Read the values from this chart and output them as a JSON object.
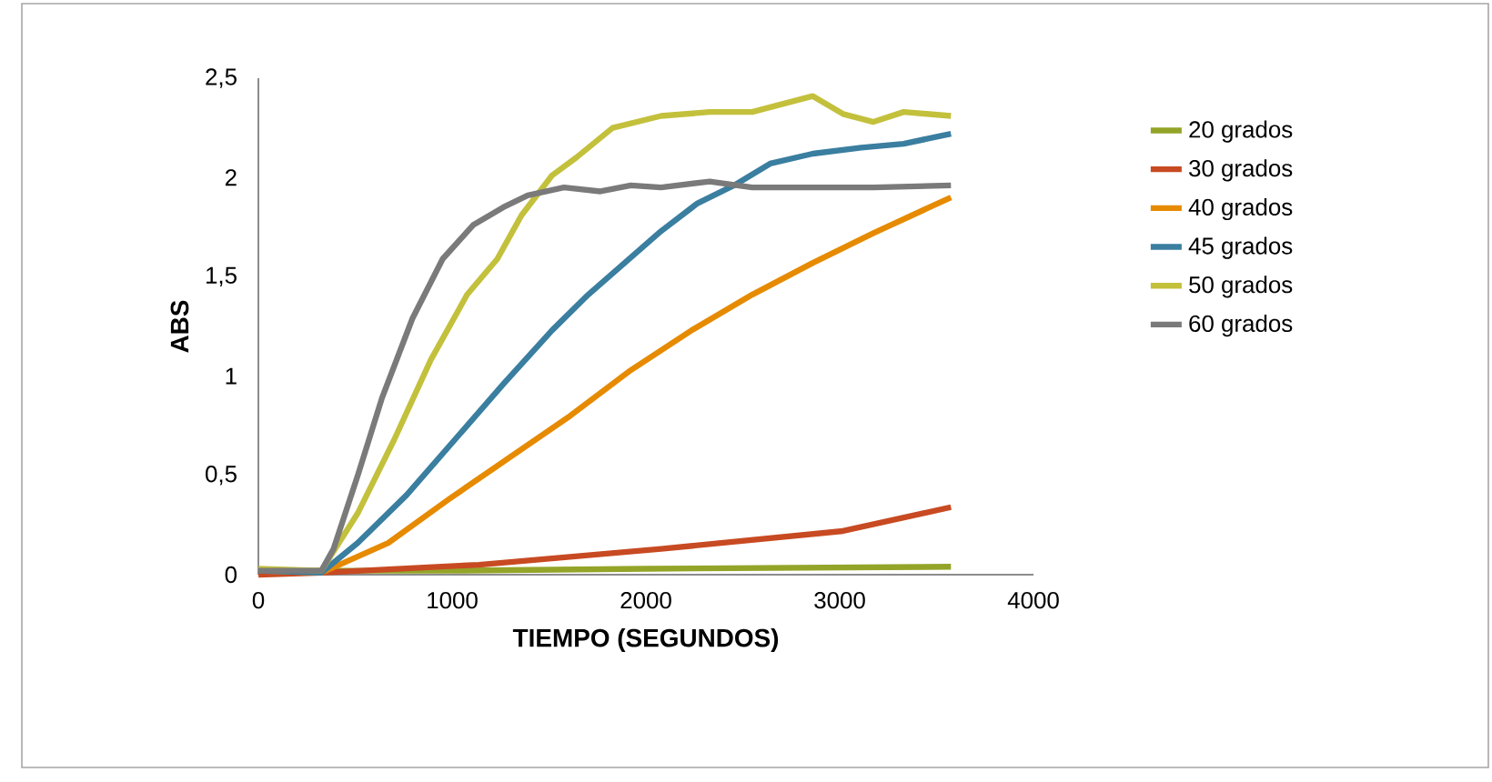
{
  "chart_data": {
    "type": "line",
    "xlabel": "TIEMPO (SEGUNDOS)",
    "ylabel": "ABS",
    "xlim": [
      0,
      4000
    ],
    "xticks": [
      0,
      1000,
      2000,
      3000,
      4000
    ],
    "ylim": [
      0,
      2.5
    ],
    "yticks": [
      0,
      {
        "value": 0.5,
        "label": "0,5"
      },
      1,
      {
        "value": 1.5,
        "label": "1,5"
      },
      2,
      {
        "value": 2.5,
        "label": "2,5"
      }
    ],
    "legend": "right",
    "marker": "none",
    "line_style": "solid",
    "grid": false,
    "series": [
      {
        "name": "20 grados",
        "color": "#94a428",
        "x": [
          0,
          1000,
          2000,
          3574
        ],
        "values": [
          0.02,
          0.02,
          0.03,
          0.04
        ]
      },
      {
        "name": "30 grados",
        "color": "#c84a22",
        "x": [
          0,
          325,
          1139,
          2078,
          3017,
          3574
        ],
        "values": [
          0,
          0.01,
          0.05,
          0.13,
          0.22,
          0.34
        ]
      },
      {
        "name": "40 grados",
        "color": "#e68a00",
        "x": [
          0,
          325,
          670,
          983,
          1296,
          1609,
          1922,
          2235,
          2548,
          2861,
          3174,
          3574
        ],
        "values": [
          0.02,
          0.01,
          0.16,
          0.38,
          0.59,
          0.8,
          1.03,
          1.23,
          1.41,
          1.57,
          1.72,
          1.9
        ]
      },
      {
        "name": "45 grados",
        "color": "#3a7ea0",
        "x": [
          0,
          325,
          513,
          764,
          1014,
          1264,
          1515,
          1702,
          1890,
          2078,
          2266,
          2454,
          2641,
          2861,
          3111,
          3330,
          3574
        ],
        "values": [
          0.02,
          0.01,
          0.16,
          0.4,
          0.68,
          0.96,
          1.23,
          1.41,
          1.57,
          1.73,
          1.87,
          1.96,
          2.07,
          2.12,
          2.15,
          2.17,
          2.22
        ]
      },
      {
        "name": "50 grados",
        "color": "#c3c03c",
        "x": [
          0,
          325,
          513,
          701,
          889,
          1077,
          1233,
          1358,
          1515,
          1640,
          1828,
          2078,
          2329,
          2548,
          2861,
          3017,
          3174,
          3330,
          3574
        ],
        "values": [
          0.03,
          0.02,
          0.31,
          0.68,
          1.08,
          1.41,
          1.59,
          1.81,
          2.01,
          2.1,
          2.25,
          2.31,
          2.33,
          2.33,
          2.41,
          2.32,
          2.28,
          2.33,
          2.31
        ]
      },
      {
        "name": "60 grados",
        "color": "#7a7a7a",
        "x": [
          0,
          325,
          388,
          513,
          638,
          795,
          951,
          1108,
          1264,
          1390,
          1577,
          1765,
          1922,
          2078,
          2329,
          2548,
          2861,
          3174,
          3574
        ],
        "values": [
          0.02,
          0.02,
          0.13,
          0.5,
          0.89,
          1.29,
          1.59,
          1.76,
          1.85,
          1.91,
          1.95,
          1.93,
          1.96,
          1.95,
          1.98,
          1.95,
          1.95,
          1.95,
          1.96
        ]
      }
    ]
  }
}
